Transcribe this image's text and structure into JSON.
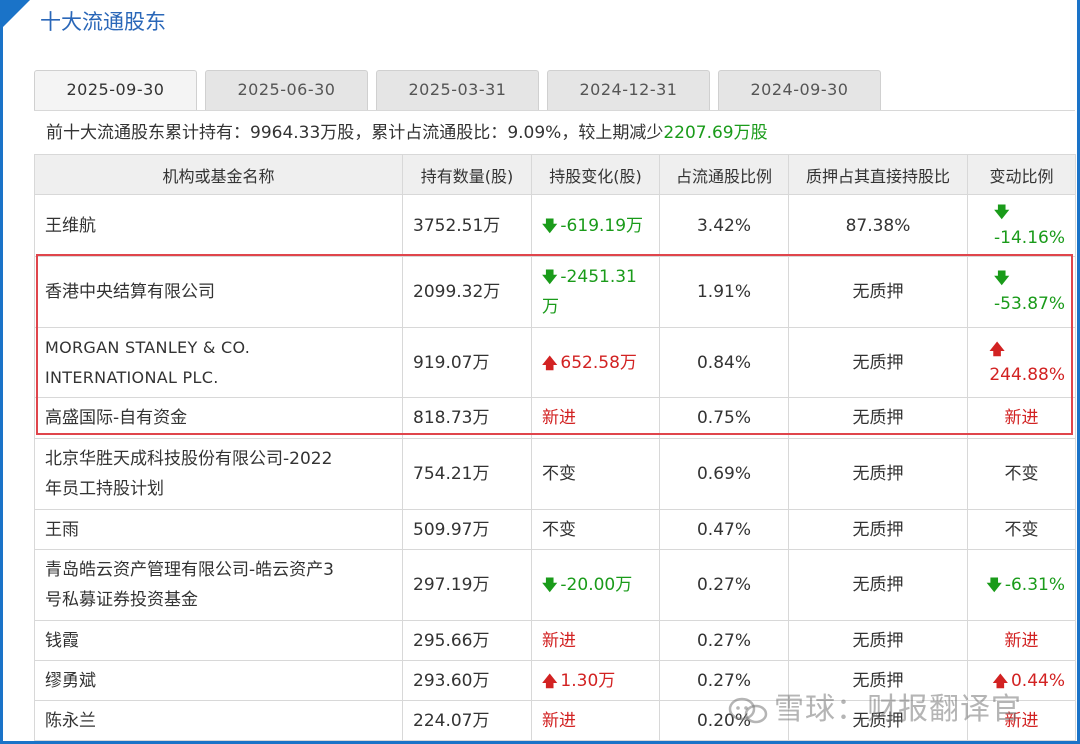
{
  "title": "十大流通股东",
  "tabs": [
    "2025-09-30",
    "2025-06-30",
    "2025-03-31",
    "2024-12-31",
    "2024-09-30"
  ],
  "active_tab": 0,
  "summary": {
    "prefix": "前十大流通股东累计持有：",
    "total": "9964.33万股",
    "sep1": "，累计占流通股比：",
    "ratio": "9.09%",
    "sep2": "，较上期减少",
    "decrease": "2207.69万股"
  },
  "columns": [
    "机构或基金名称",
    "持有数量(股)",
    "持股变化(股)",
    "占流通股比例",
    "质押占其直接持股比",
    "变动比例"
  ],
  "rows": [
    {
      "name": "王维航",
      "qty": "3752.51万",
      "change": "-619.19万",
      "change_dir": "down",
      "ratio": "3.42%",
      "pledge": "87.38%",
      "pct": "-14.16%",
      "pct_dir": "down"
    },
    {
      "name": "香港中央结算有限公司",
      "qty": "2099.32万",
      "change_l1": "-2451.31",
      "change_l2": "万",
      "change_dir": "down",
      "ratio": "1.91%",
      "pledge": "无质押",
      "pct": "-53.87%",
      "pct_dir": "down"
    },
    {
      "name_l1": "MORGAN STANLEY & CO.",
      "name_l2": "INTERNATIONAL PLC.",
      "qty": "919.07万",
      "change": "652.58万",
      "change_dir": "up",
      "ratio": "0.84%",
      "pledge": "无质押",
      "pct": "244.88%",
      "pct_dir": "up"
    },
    {
      "name": "高盛国际-自有资金",
      "qty": "818.73万",
      "change": "新进",
      "change_dir": "new",
      "ratio": "0.75%",
      "pledge": "无质押",
      "pct": "新进",
      "pct_dir": "new"
    },
    {
      "name_l1": "北京华胜天成科技股份有限公司-2022",
      "name_l2": "年员工持股计划",
      "qty": "754.21万",
      "change": "不变",
      "change_dir": "same",
      "ratio": "0.69%",
      "pledge": "无质押",
      "pct": "不变",
      "pct_dir": "same"
    },
    {
      "name": "王雨",
      "qty": "509.97万",
      "change": "不变",
      "change_dir": "same",
      "ratio": "0.47%",
      "pledge": "无质押",
      "pct": "不变",
      "pct_dir": "same"
    },
    {
      "name_l1": "青岛皓云资产管理有限公司-皓云资产3",
      "name_l2": "号私募证券投资基金",
      "qty": "297.19万",
      "change": "-20.00万",
      "change_dir": "down",
      "ratio": "0.27%",
      "pledge": "无质押",
      "pct": "-6.31%",
      "pct_dir": "down"
    },
    {
      "name": "钱霞",
      "qty": "295.66万",
      "change": "新进",
      "change_dir": "new",
      "ratio": "0.27%",
      "pledge": "无质押",
      "pct": "新进",
      "pct_dir": "new"
    },
    {
      "name": "缪勇斌",
      "qty": "293.60万",
      "change": "1.30万",
      "change_dir": "up",
      "ratio": "0.27%",
      "pledge": "无质押",
      "pct": "0.44%",
      "pct_dir": "up"
    },
    {
      "name": "陈永兰",
      "qty": "224.07万",
      "change": "新进",
      "change_dir": "new",
      "ratio": "0.20%",
      "pledge": "无质押",
      "pct": "新进",
      "pct_dir": "new"
    }
  ],
  "watermark": "雪球：财报翻译官",
  "icons": {
    "down": "arrow-down-icon",
    "up": "arrow-up-icon"
  },
  "colors": {
    "title": "#2a67b8",
    "down": "#1a9b1a",
    "up": "#d22222",
    "highlight_border": "#e0454c",
    "frame": "#1a73c8"
  }
}
